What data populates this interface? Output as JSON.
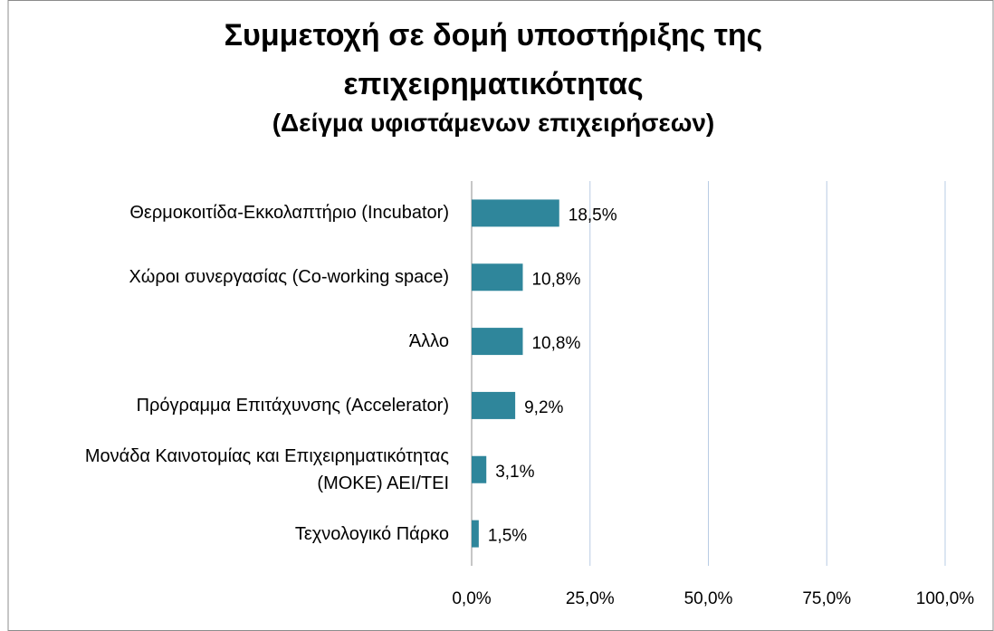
{
  "chart_data": {
    "type": "bar",
    "orientation": "horizontal",
    "title": "Συμμετοχή σε δομή υποστήριξης της επιχειρηματικότητας",
    "subtitle": "(Δείγμα υφιστάμενων επιχειρήσεων)",
    "categories": [
      "Θερμοκοιτίδα-Εκκολαπτήριο  (Incubator)",
      "Χώροι συνεργασίας (Co-working space)",
      "Άλλο",
      "Πρόγραμμα Επιτάχυνσης (Accelerator)",
      "Μονάδα Καινοτομίας και Επιχειρηματικότητας (ΜΟΚΕ) ΑΕΙ/ΤΕΙ",
      "Τεχνολογικό Πάρκο"
    ],
    "values": [
      18.5,
      10.8,
      10.8,
      9.2,
      3.1,
      1.5
    ],
    "value_labels": [
      "18,5%",
      "10,8%",
      "10,8%",
      "9,2%",
      "3,1%",
      "1,5%"
    ],
    "color": "#2f869b",
    "xlim": [
      0,
      100
    ],
    "xticks": [
      {
        "value": 0,
        "label": "0,0%"
      },
      {
        "value": 25,
        "label": "25,0%"
      },
      {
        "value": 50,
        "label": "50,0%"
      },
      {
        "value": 75,
        "label": "75,0%"
      },
      {
        "value": 100,
        "label": "100,0%"
      }
    ],
    "grid": true
  }
}
